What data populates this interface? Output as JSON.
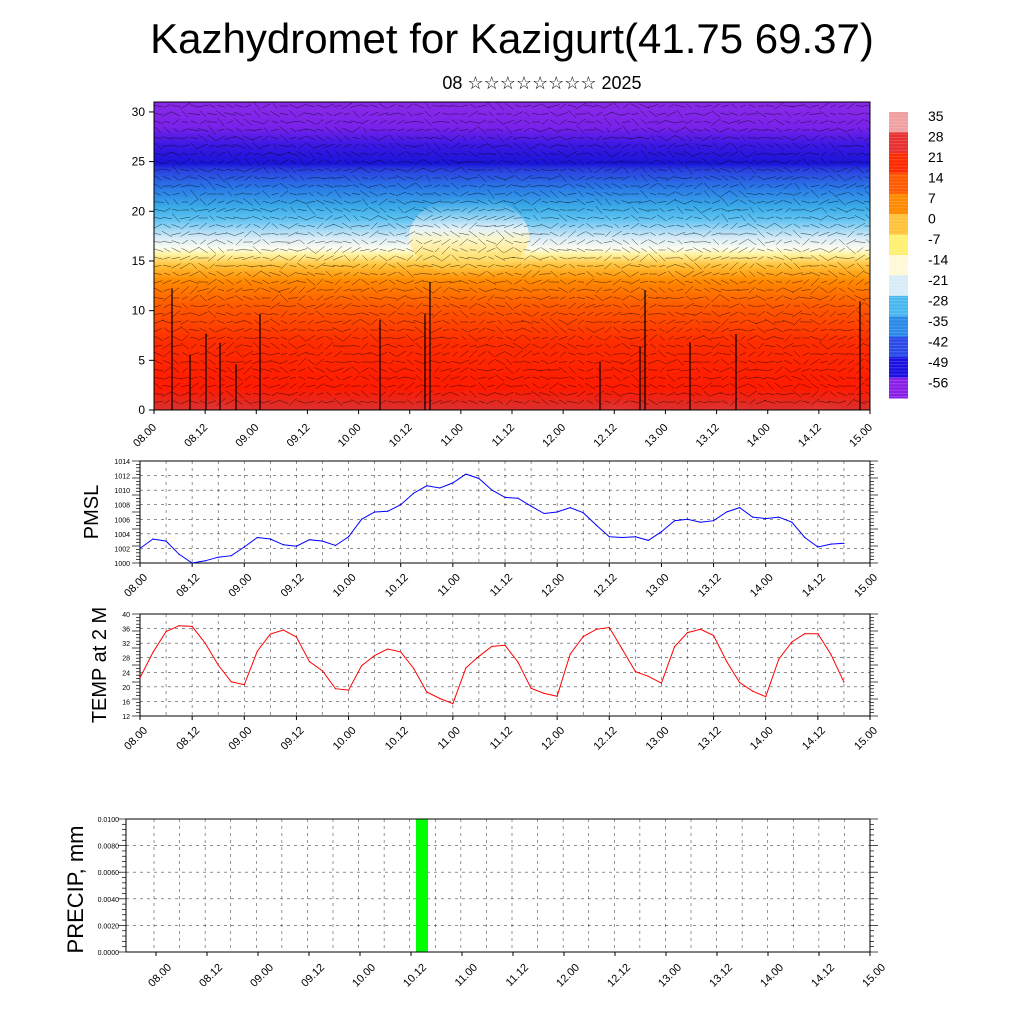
{
  "title": "Kazhydromet for Kazigurt(41.75 69.37)",
  "subtitle": "08 ☆☆☆☆☆☆☆☆ 2025",
  "time_ticks": [
    "08.00",
    "08.12",
    "09.00",
    "09.12",
    "10.00",
    "10.12",
    "11.00",
    "11.12",
    "12.00",
    "12.12",
    "13.00",
    "13.12",
    "14.00",
    "14.12",
    "15.00"
  ],
  "colorbar": {
    "labels": [
      "35",
      "28",
      "21",
      "14",
      "7",
      "0",
      "-7",
      "-14",
      "-21",
      "-28",
      "-35",
      "-42",
      "-49",
      "-56"
    ],
    "colors": [
      "#f0a0a0",
      "#e83030",
      "#ff2a00",
      "#ff5a00",
      "#ff8a00",
      "#ffc23a",
      "#fff070",
      "#fff9d8",
      "#d8ecf8",
      "#4ab8f0",
      "#2a8ae8",
      "#2a4ae8",
      "#1a10e0",
      "#8a20e8"
    ]
  },
  "chart_data": [
    {
      "type": "heatmap",
      "title": "",
      "xlabel": "",
      "ylabel": "",
      "x": [
        "08.00",
        "08.12",
        "09.00",
        "09.12",
        "10.00",
        "10.12",
        "11.00",
        "11.12",
        "12.00",
        "12.12",
        "13.00",
        "13.12",
        "14.00",
        "14.12",
        "15.00"
      ],
      "ylim": [
        0,
        31
      ],
      "yticks": [
        0,
        5,
        10,
        15,
        20,
        25,
        30
      ],
      "zlim": [
        -56,
        35
      ]
    },
    {
      "type": "line",
      "ylabel": "PMSL",
      "ylim": [
        1000,
        1014
      ],
      "yticks": [
        1000,
        1002,
        1004,
        1006,
        1008,
        1010,
        1012,
        1014
      ],
      "xlim": [
        0,
        56
      ],
      "x": [
        0,
        1,
        2,
        3,
        4,
        5,
        6,
        7,
        8,
        9,
        10,
        11,
        12,
        13,
        14,
        15,
        16,
        17,
        18,
        19,
        20,
        21,
        22,
        23,
        24,
        25,
        26,
        27,
        28,
        29,
        30,
        31,
        32,
        33,
        34,
        35,
        36,
        37,
        38,
        39,
        40,
        41,
        42,
        43,
        44,
        45,
        46,
        47,
        48,
        49,
        50,
        51,
        52,
        53,
        54
      ],
      "series": [
        {
          "color": "#0000ff",
          "values": [
            1002,
            1003.3,
            1003,
            1001.2,
            1000,
            1000.3,
            1000.8,
            1001,
            1002.2,
            1003.5,
            1003.3,
            1002.5,
            1002.3,
            1003.2,
            1003,
            1002.4,
            1003.6,
            1006,
            1007,
            1007.1,
            1008,
            1009.6,
            1010.6,
            1010.3,
            1011,
            1012.2,
            1011.6,
            1010,
            1009,
            1008.9,
            1007.8,
            1006.8,
            1007,
            1007.6,
            1006.9,
            1005.2,
            1003.6,
            1003.5,
            1003.6,
            1003.1,
            1004.3,
            1005.8,
            1006,
            1005.6,
            1005.8,
            1007,
            1007.6,
            1006.3,
            1006.1,
            1006.3,
            1005.6,
            1003.5,
            1002.2,
            1002.6,
            1002.7
          ]
        }
      ]
    },
    {
      "type": "line",
      "ylabel": "TEMP at 2 M",
      "ylim": [
        12,
        40
      ],
      "yticks": [
        12,
        16,
        20,
        24,
        28,
        32,
        36,
        40
      ],
      "xlim": [
        0,
        56
      ],
      "x": [
        0,
        1,
        2,
        3,
        4,
        5,
        6,
        7,
        8,
        9,
        10,
        11,
        12,
        13,
        14,
        15,
        16,
        17,
        18,
        19,
        20,
        21,
        22,
        23,
        24,
        25,
        26,
        27,
        28,
        29,
        30,
        31,
        32,
        33,
        34,
        35,
        36,
        37,
        38,
        39,
        40,
        41,
        42,
        43,
        44,
        45,
        46,
        47,
        48,
        49,
        50,
        51,
        52,
        53,
        54
      ],
      "series": [
        {
          "color": "#ff0000",
          "values": [
            22.5,
            29.5,
            35.2,
            36.8,
            36.6,
            32,
            26,
            21.4,
            20.6,
            29.8,
            34.5,
            35.6,
            33.7,
            26.9,
            24.4,
            19.5,
            19.1,
            25.8,
            28.6,
            30.4,
            29.6,
            25,
            18.6,
            16.8,
            15.4,
            25.2,
            28.4,
            31.1,
            31.4,
            26.8,
            19.6,
            18.2,
            17.4,
            29,
            33.8,
            35.8,
            36.3,
            30.3,
            24.2,
            22.9,
            21,
            31,
            34.9,
            35.8,
            34.1,
            27,
            21.2,
            18.8,
            17.3,
            27.6,
            32.3,
            34.6,
            34.6,
            28.9,
            21.3
          ]
        }
      ]
    },
    {
      "type": "bar",
      "ylabel": "PRECIP, mm",
      "ylim": [
        0,
        0.01
      ],
      "yticks": [
        "0.0000",
        "0.0020",
        "0.0040",
        "0.0060",
        "0.0080",
        "0.0100"
      ],
      "x": [
        "10.12"
      ],
      "values": [
        0.01
      ],
      "color": "#00ff00"
    }
  ]
}
